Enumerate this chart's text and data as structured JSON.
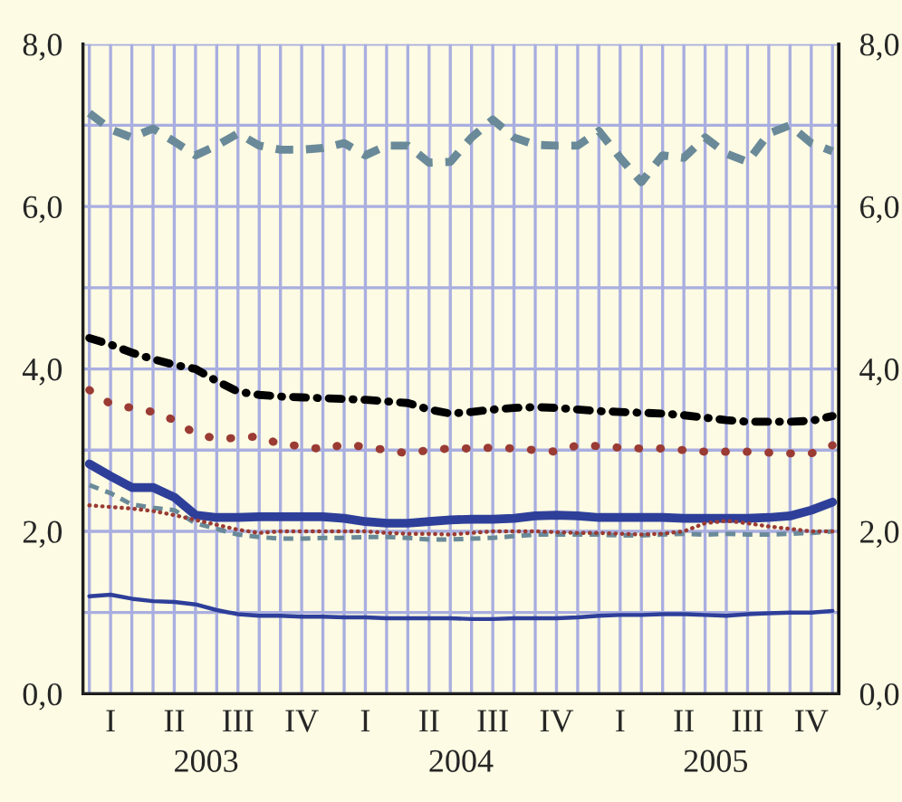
{
  "chart_data": {
    "type": "line",
    "categories": [
      null,
      "I",
      null,
      null,
      "II",
      null,
      null,
      "III",
      null,
      null,
      "IV",
      null,
      null,
      "I",
      null,
      null,
      "II",
      null,
      null,
      "III",
      null,
      null,
      "IV",
      null,
      null,
      "I",
      null,
      null,
      "II",
      null,
      null,
      "III",
      null,
      null,
      "IV",
      null
    ],
    "annotations": [
      "2003",
      "2004",
      "2005"
    ],
    "series": [
      {
        "color": "#6a8a99",
        "line_style": "dashed",
        "values": [
          7.15,
          6.95,
          6.85,
          6.96,
          6.8,
          6.63,
          6.75,
          6.9,
          6.75,
          6.7,
          6.7,
          6.72,
          6.78,
          6.63,
          6.75,
          6.75,
          6.54,
          6.55,
          6.85,
          7.07,
          6.85,
          6.76,
          6.75,
          6.75,
          6.93,
          6.6,
          6.3,
          6.63,
          6.6,
          6.85,
          6.65,
          6.55,
          6.9,
          7.0,
          6.78,
          6.68
        ]
      },
      {
        "color": "#000000",
        "line_style": "dashdot",
        "values": [
          4.38,
          4.3,
          4.2,
          4.12,
          4.05,
          4.0,
          3.85,
          3.72,
          3.68,
          3.66,
          3.65,
          3.64,
          3.63,
          3.62,
          3.6,
          3.58,
          3.5,
          3.45,
          3.47,
          3.5,
          3.52,
          3.53,
          3.52,
          3.5,
          3.48,
          3.47,
          3.46,
          3.45,
          3.43,
          3.4,
          3.37,
          3.35,
          3.35,
          3.35,
          3.36,
          3.42
        ]
      },
      {
        "color": "#9a3b34",
        "line_style": "dotted",
        "values": [
          3.74,
          3.57,
          3.52,
          3.47,
          3.37,
          3.2,
          3.14,
          3.15,
          3.17,
          3.07,
          3.05,
          3.01,
          3.07,
          3.04,
          3.0,
          2.96,
          3.0,
          3.02,
          3.02,
          3.03,
          3.02,
          3.0,
          2.98,
          3.06,
          3.05,
          3.03,
          3.02,
          3.02,
          3.0,
          2.98,
          2.98,
          2.98,
          2.97,
          2.96,
          2.96,
          3.06
        ]
      },
      {
        "color": "#2e3f9a",
        "line_style": "solid",
        "values": [
          2.83,
          2.68,
          2.54,
          2.54,
          2.42,
          2.2,
          2.17,
          2.17,
          2.18,
          2.18,
          2.18,
          2.18,
          2.16,
          2.12,
          2.1,
          2.1,
          2.12,
          2.14,
          2.15,
          2.15,
          2.16,
          2.19,
          2.2,
          2.19,
          2.17,
          2.17,
          2.17,
          2.17,
          2.16,
          2.16,
          2.16,
          2.16,
          2.17,
          2.19,
          2.26,
          2.36
        ]
      },
      {
        "color": "#6a8a99",
        "line_style": "dashed",
        "values": [
          2.57,
          2.47,
          2.33,
          2.29,
          2.26,
          2.1,
          2.03,
          1.96,
          1.93,
          1.91,
          1.91,
          1.92,
          1.92,
          1.93,
          1.93,
          1.92,
          1.9,
          1.9,
          1.91,
          1.92,
          1.94,
          1.96,
          1.96,
          1.96,
          1.96,
          1.95,
          1.95,
          1.96,
          1.97,
          1.96,
          1.97,
          1.96,
          1.96,
          1.97,
          1.98,
          2.0
        ]
      },
      {
        "color": "#9a3b34",
        "line_style": "dotted",
        "values": [
          2.32,
          2.3,
          2.28,
          2.25,
          2.2,
          2.14,
          2.08,
          2.02,
          1.98,
          2.0,
          2.0,
          2.0,
          2.0,
          2.0,
          1.98,
          1.97,
          1.97,
          1.96,
          1.98,
          2.0,
          2.0,
          2.0,
          1.99,
          1.98,
          1.98,
          1.97,
          1.96,
          1.97,
          2.0,
          2.1,
          2.13,
          2.1,
          2.06,
          2.03,
          2.0,
          2.0
        ]
      },
      {
        "color": "#2e3f9a",
        "line_style": "solid",
        "values": [
          1.2,
          1.22,
          1.17,
          1.14,
          1.13,
          1.1,
          1.03,
          0.98,
          0.96,
          0.96,
          0.95,
          0.95,
          0.94,
          0.94,
          0.93,
          0.93,
          0.93,
          0.93,
          0.92,
          0.92,
          0.93,
          0.93,
          0.93,
          0.94,
          0.96,
          0.97,
          0.97,
          0.98,
          0.98,
          0.97,
          0.96,
          0.98,
          0.99,
          1.0,
          1.0,
          1.02
        ]
      }
    ],
    "ylim": [
      0,
      8
    ],
    "yticks": [
      {
        "value": 0,
        "label": "0,0"
      },
      {
        "value": 1,
        "label": null
      },
      {
        "value": 2,
        "label": "2,0"
      },
      {
        "value": 3,
        "label": null
      },
      {
        "value": 4,
        "label": "4,0"
      },
      {
        "value": 5,
        "label": null
      },
      {
        "value": 6,
        "label": "6,0"
      },
      {
        "value": 7,
        "label": null
      },
      {
        "value": 8,
        "label": "8,0"
      }
    ],
    "y2lim": [
      0,
      8
    ],
    "y2ticks": [
      {
        "value": 0,
        "label": "0,0"
      },
      {
        "value": 2,
        "label": "2,0"
      },
      {
        "value": 4,
        "label": "4,0"
      },
      {
        "value": 6,
        "label": "6,0"
      },
      {
        "value": 8,
        "label": "8,0"
      }
    ],
    "grid": true
  }
}
